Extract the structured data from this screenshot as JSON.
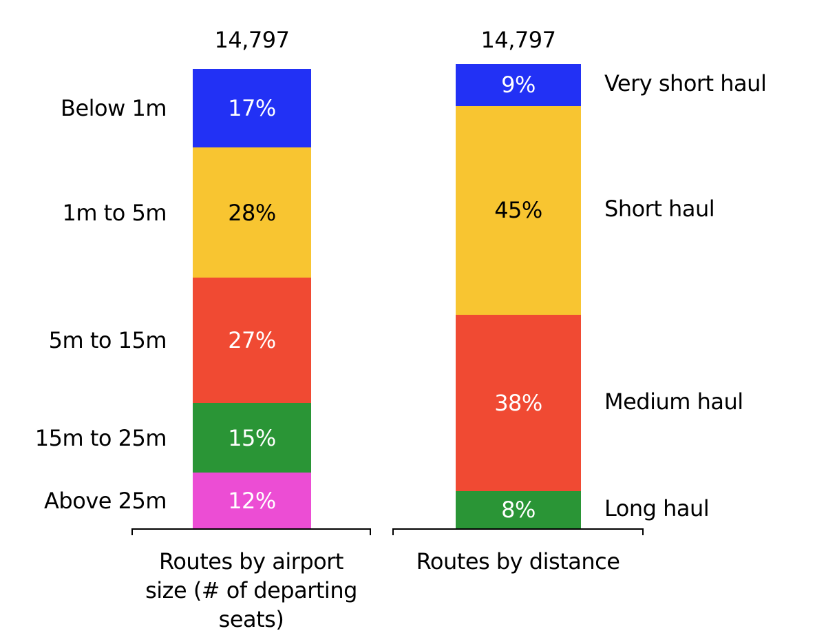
{
  "chart_data": [
    {
      "type": "bar",
      "stacked": true,
      "total": 14797,
      "total_label": "14,797",
      "xlabel": "Routes by airport size (# of departing seats)",
      "label_side": "left",
      "ylim": [
        0,
        100
      ],
      "series": [
        {
          "name": "Below 1m",
          "color": "#2231f5",
          "text_color": "#ffffff",
          "values": [
            17
          ],
          "value_labels": [
            "17%"
          ]
        },
        {
          "name": "1m to 5m",
          "color": "#f8c531",
          "text_color": "#000000",
          "values": [
            28
          ],
          "value_labels": [
            "28%"
          ]
        },
        {
          "name": "5m to 15m",
          "color": "#f04a33",
          "text_color": "#ffffff",
          "values": [
            27
          ],
          "value_labels": [
            "27%"
          ]
        },
        {
          "name": "15m to 25m",
          "color": "#2a9536",
          "text_color": "#ffffff",
          "values": [
            15
          ],
          "value_labels": [
            "15%"
          ]
        },
        {
          "name": "Above 25m",
          "color": "#ec4dd4",
          "text_color": "#ffffff",
          "values": [
            12
          ],
          "value_labels": [
            "12%"
          ]
        }
      ]
    },
    {
      "type": "bar",
      "stacked": true,
      "total": 14797,
      "total_label": "14,797",
      "xlabel": "Routes by distance",
      "label_side": "right",
      "ylim": [
        0,
        100
      ],
      "series": [
        {
          "name": "Very short haul",
          "color": "#2231f5",
          "text_color": "#ffffff",
          "values": [
            9
          ],
          "value_labels": [
            "9%"
          ]
        },
        {
          "name": "Short haul",
          "color": "#f8c531",
          "text_color": "#000000",
          "values": [
            45
          ],
          "value_labels": [
            "45%"
          ]
        },
        {
          "name": "Medium haul",
          "color": "#f04a33",
          "text_color": "#ffffff",
          "values": [
            38
          ],
          "value_labels": [
            "38%"
          ]
        },
        {
          "name": "Long haul",
          "color": "#2a9536",
          "text_color": "#ffffff",
          "values": [
            8
          ],
          "value_labels": [
            "8%"
          ]
        }
      ]
    }
  ]
}
